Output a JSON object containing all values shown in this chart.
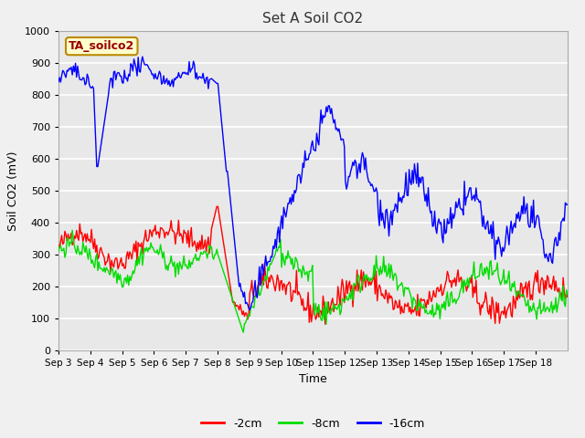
{
  "title": "Set A Soil CO2",
  "xlabel": "Time",
  "ylabel": "Soil CO2 (mV)",
  "ylim": [
    0,
    1000
  ],
  "xlim": [
    0,
    480
  ],
  "fig_bg_color": "#f0f0f0",
  "plot_bg_color": "#e8e8e8",
  "grid_color": "#ffffff",
  "line_colors": {
    "red": "#ff0000",
    "green": "#00dd00",
    "blue": "#0000ff"
  },
  "legend_labels": [
    "-2cm",
    "-8cm",
    "-16cm"
  ],
  "annotation_text": "TA_soilco2",
  "annotation_bg": "#ffffcc",
  "annotation_border": "#bb8800",
  "xtick_labels": [
    "Sep 3",
    "Sep 4",
    "Sep 5",
    "Sep 6",
    "Sep 7",
    "Sep 8",
    "Sep 9",
    "Sep 10",
    "Sep 11",
    "Sep 12",
    "Sep 13",
    "Sep 14",
    "Sep 15",
    "Sep 16",
    "Sep 17",
    "Sep 18"
  ],
  "title_fontsize": 11,
  "axis_label_fontsize": 9,
  "tick_fontsize": 7.5,
  "annotation_fontsize": 9
}
